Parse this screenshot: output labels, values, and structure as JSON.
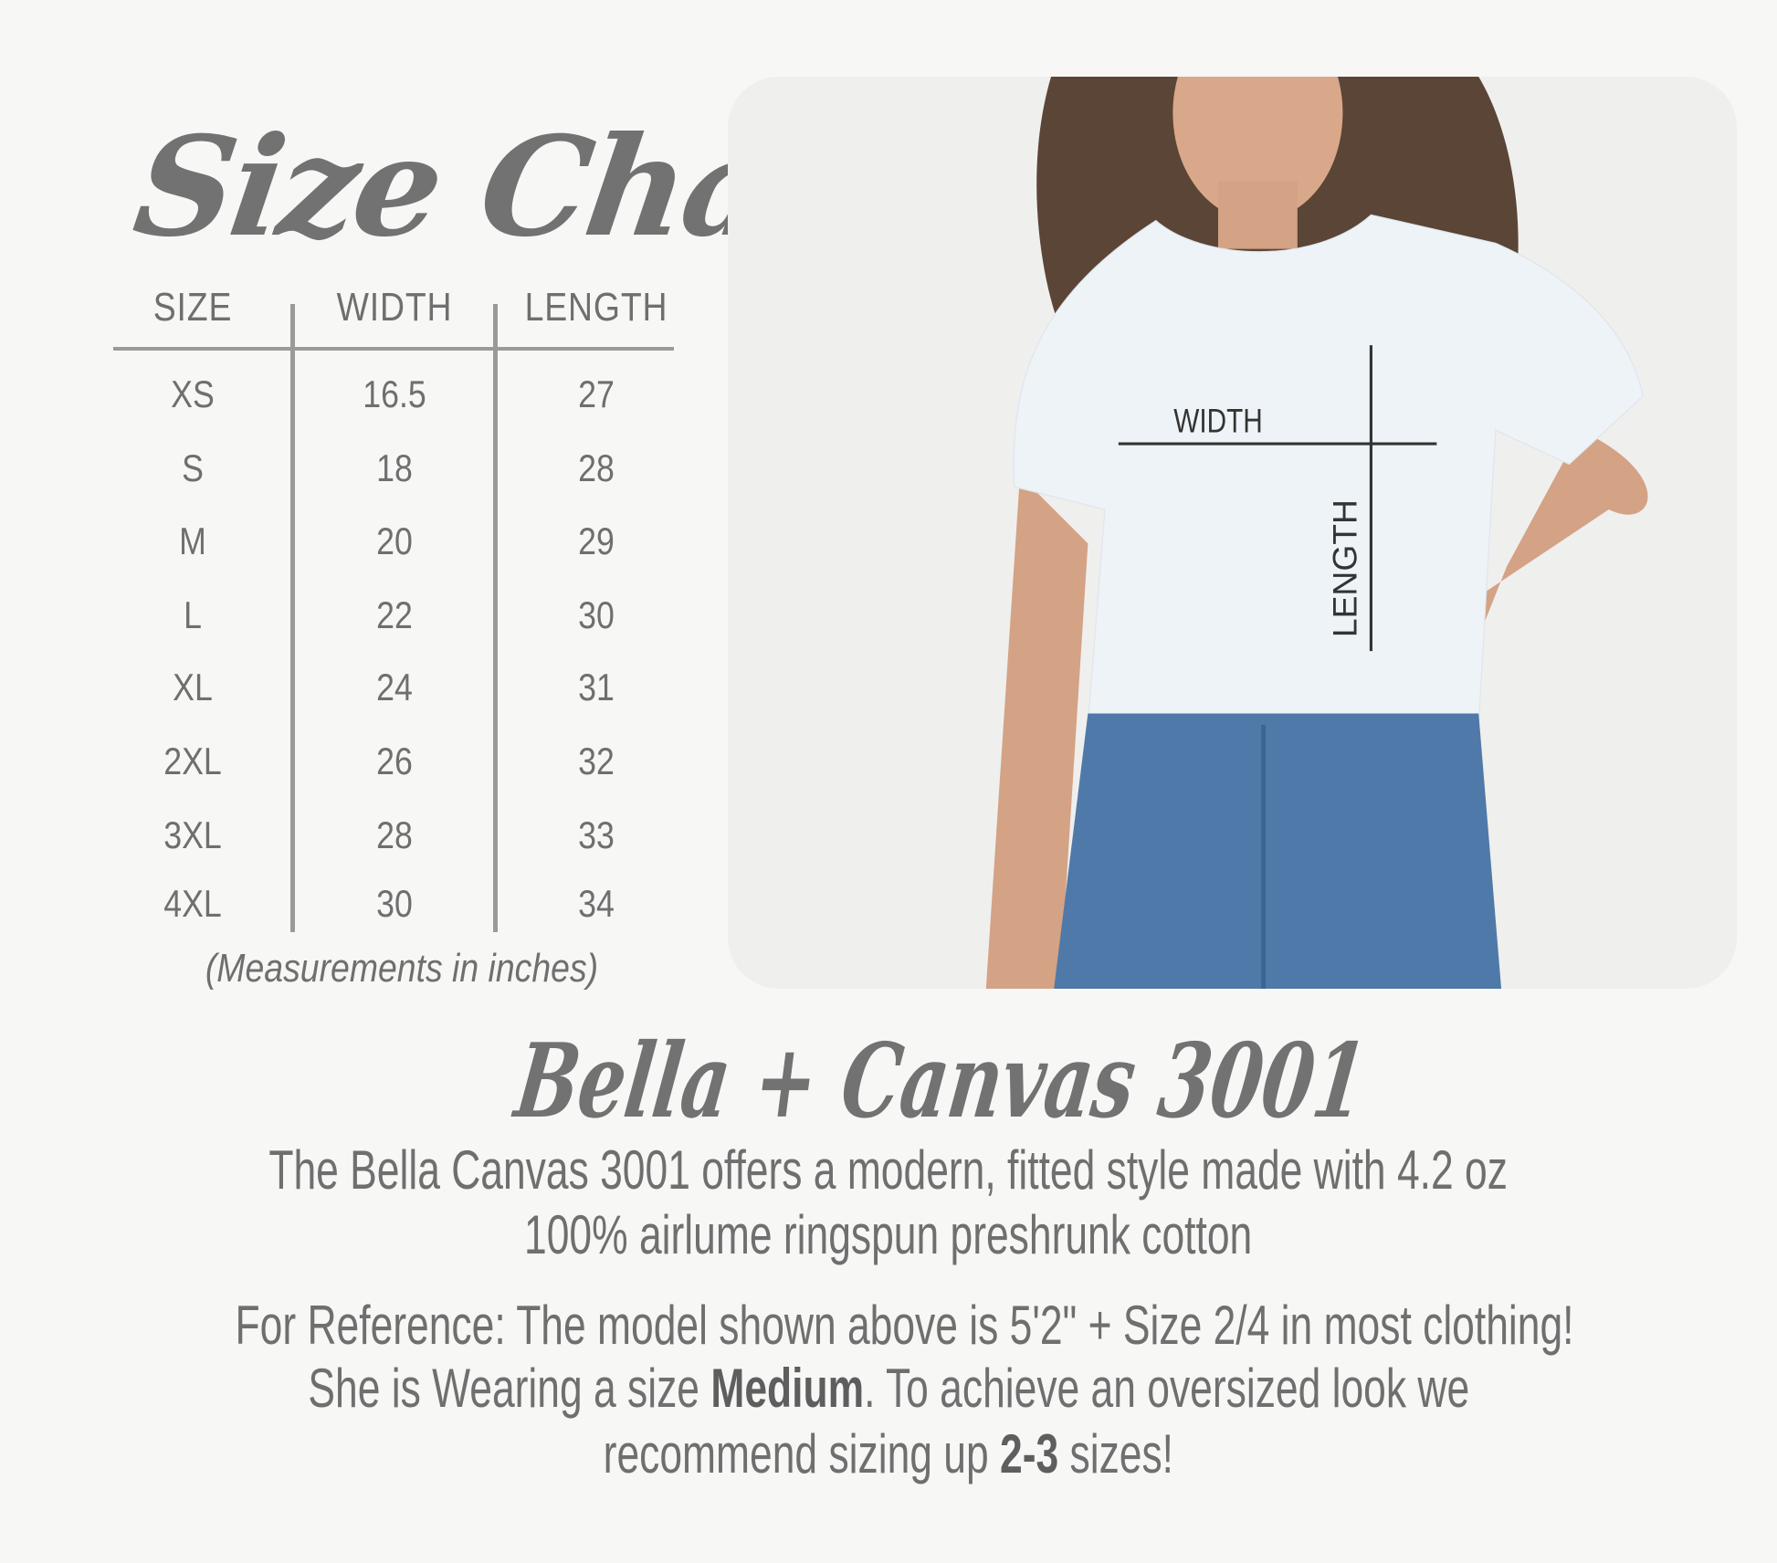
{
  "title": "Size Chart",
  "table": {
    "headers": [
      "SIZE",
      "WIDTH",
      "LENGTH"
    ],
    "rows": [
      [
        "XS",
        "16.5",
        "27"
      ],
      [
        "S",
        "18",
        "28"
      ],
      [
        "M",
        "20",
        "29"
      ],
      [
        "L",
        "22",
        "30"
      ],
      [
        "XL",
        "24",
        "31"
      ],
      [
        "2XL",
        "26",
        "32"
      ],
      [
        "3XL",
        "28",
        "33"
      ],
      [
        "4XL",
        "30",
        "34"
      ]
    ],
    "note": "(Measurements in inches)"
  },
  "photo": {
    "width_label": "WIDTH",
    "length_label": "LENGTH"
  },
  "brand": "Bella + Canvas 3001",
  "description": {
    "line1": "The Bella Canvas 3001 offers a modern, fitted style made with 4.2 oz",
    "line2": "100% airlume ringspun preshrunk cotton"
  },
  "reference": {
    "line1": "For Reference: The model shown above is 5'2\" + Size 2/4 in most clothing!",
    "line2_pre": "She is Wearing a size ",
    "line2_bold": "Medium",
    "line2_post": ". To achieve an oversized look we",
    "line3_pre": "recommend sizing up ",
    "line3_bold": "2-3",
    "line3_post": " sizes!"
  },
  "colors": {
    "text": "#6f6f6f",
    "background": "#f7f7f6",
    "shirt": "#eef3f7",
    "jeans": "#4f79a8"
  }
}
